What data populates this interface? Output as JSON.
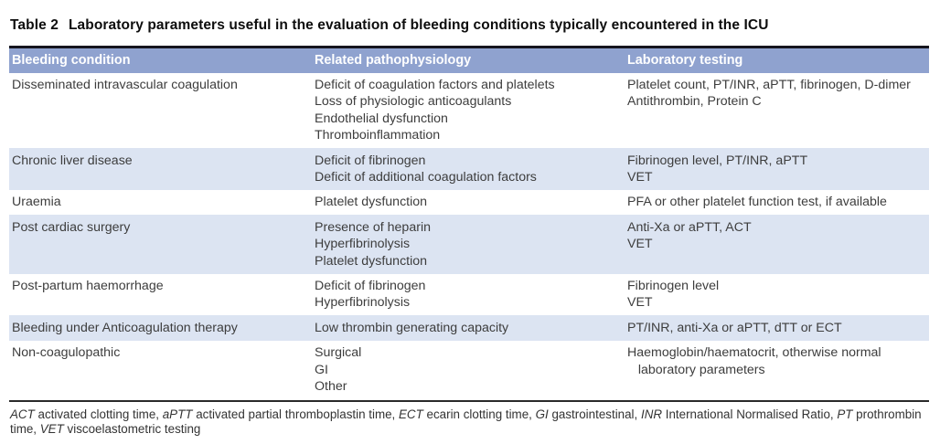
{
  "title": {
    "label": "Table 2",
    "text": "Laboratory parameters useful in the evaluation of bleeding conditions typically encountered in the ICU"
  },
  "colors": {
    "header_bg": "#8fa2cf",
    "shaded_row_bg": "#dce4f2",
    "top_rule": "#15151e",
    "footnote_rule": "#2a2a2a",
    "header_text": "#ffffff",
    "body_text": "#3d3d3d"
  },
  "table": {
    "columns": [
      "Bleeding condition",
      "Related pathophysiology",
      "Laboratory testing"
    ],
    "rows": [
      {
        "condition": "Disseminated intravascular coagulation",
        "pathophysiology": [
          "Deficit of coagulation factors and platelets",
          "Loss of physiologic anticoagulants",
          "Endothelial dysfunction",
          "Thromboinflammation"
        ],
        "testing": [
          "Platelet count, PT/INR, aPTT, fibrinogen, D-dimer",
          "Antithrombin, Protein C"
        ],
        "shaded": false
      },
      {
        "condition": "Chronic liver disease",
        "pathophysiology": [
          "Deficit of fibrinogen",
          "Deficit of additional coagulation factors"
        ],
        "testing": [
          "Fibrinogen level, PT/INR, aPTT",
          "VET"
        ],
        "shaded": true
      },
      {
        "condition": "Uraemia",
        "pathophysiology": [
          "Platelet dysfunction"
        ],
        "testing": [
          "PFA or other platelet function test, if available"
        ],
        "shaded": false
      },
      {
        "condition": "Post cardiac surgery",
        "pathophysiology": [
          "Presence of heparin",
          "Hyperfibrinolysis",
          "Platelet dysfunction"
        ],
        "testing": [
          "Anti-Xa or aPTT, ACT",
          "VET"
        ],
        "shaded": true
      },
      {
        "condition": "Post-partum haemorrhage",
        "pathophysiology": [
          "Deficit of fibrinogen",
          "Hyperfibrinolysis"
        ],
        "testing": [
          "Fibrinogen level",
          "VET"
        ],
        "shaded": false
      },
      {
        "condition": "Bleeding under Anticoagulation therapy",
        "pathophysiology": [
          "Low thrombin generating capacity"
        ],
        "testing": [
          "PT/INR, anti-Xa or aPTT, dTT or ECT"
        ],
        "shaded": true
      },
      {
        "condition": "Non-coagulopathic",
        "pathophysiology": [
          "Surgical",
          "GI",
          "Other"
        ],
        "testing": [
          "Haemoglobin/haematocrit, otherwise normal",
          "   laboratory parameters"
        ],
        "shaded": false
      }
    ]
  },
  "footnote": {
    "segments": [
      {
        "abbr": "ACT",
        "text": " activated clotting time, "
      },
      {
        "abbr": "aPTT",
        "text": " activated partial thromboplastin time, "
      },
      {
        "abbr": "ECT",
        "text": " ecarin clotting time, "
      },
      {
        "abbr": "GI",
        "text": " gastrointestinal, "
      },
      {
        "abbr": "INR",
        "text": " International Normalised Ratio, "
      },
      {
        "abbr": "PT",
        "text": " prothrombin time, "
      },
      {
        "abbr": "VET",
        "text": " viscoelastometric testing"
      }
    ]
  }
}
